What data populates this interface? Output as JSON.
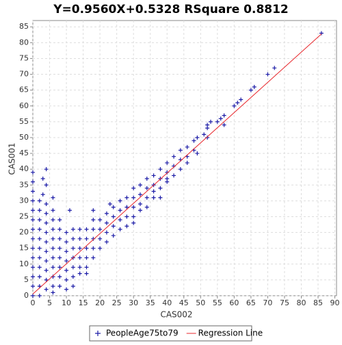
{
  "chart_data": {
    "type": "scatter",
    "title": "Y=0.9560X+0.5328    RSquare 0.8812",
    "x_label": "CAS002",
    "y_label": "CAS001",
    "xlim": [
      0,
      90.5
    ],
    "ylim": [
      0,
      87
    ],
    "xticks": [
      0,
      5,
      10,
      15,
      20,
      25,
      30,
      35,
      40,
      45,
      50,
      55,
      60,
      65,
      70,
      75,
      80,
      85,
      90
    ],
    "yticks": [
      0,
      5,
      10,
      15,
      20,
      25,
      30,
      35,
      40,
      45,
      50,
      55,
      60,
      65,
      70,
      75,
      80,
      85
    ],
    "grid": true,
    "legend": "bottom",
    "series": [
      {
        "name": "PeopleAge75to79",
        "color": "#1a1aa6",
        "marker": "plus",
        "x": [
          0,
          0,
          0,
          0,
          0,
          0,
          0,
          0,
          0,
          0,
          0,
          0,
          0,
          0,
          2,
          2,
          2,
          2,
          2,
          2,
          2,
          2,
          2,
          2,
          2,
          3,
          3,
          4,
          4,
          4,
          4,
          4,
          4,
          4,
          4,
          4,
          4,
          4,
          4,
          6,
          6,
          6,
          6,
          6,
          6,
          6,
          6,
          6,
          6,
          6,
          8,
          8,
          8,
          8,
          8,
          8,
          8,
          8,
          10,
          10,
          10,
          10,
          10,
          10,
          10,
          11,
          12,
          12,
          12,
          12,
          12,
          12,
          12,
          14,
          14,
          14,
          14,
          14,
          14,
          16,
          16,
          16,
          16,
          16,
          16,
          18,
          18,
          18,
          18,
          18,
          18,
          20,
          20,
          20,
          20,
          22,
          22,
          22,
          22,
          23,
          24,
          24,
          24,
          24,
          26,
          26,
          26,
          26,
          28,
          28,
          28,
          28,
          30,
          30,
          30,
          30,
          30,
          32,
          32,
          32,
          32,
          34,
          34,
          34,
          34,
          36,
          36,
          36,
          36,
          38,
          38,
          38,
          38,
          40,
          40,
          40,
          40,
          42,
          42,
          42,
          44,
          44,
          44,
          46,
          46,
          46,
          48,
          48,
          49,
          49,
          51,
          52,
          52,
          52,
          53,
          55,
          56,
          57,
          57,
          60,
          61,
          62,
          65,
          66,
          70,
          72,
          86
        ],
        "values": [
          0,
          3,
          6,
          9,
          12,
          15,
          18,
          21,
          24,
          27,
          30,
          33,
          36,
          39,
          0,
          3,
          6,
          9,
          12,
          15,
          18,
          21,
          24,
          27,
          30,
          37,
          32,
          40,
          35,
          2,
          5,
          8,
          11,
          14,
          17,
          20,
          23,
          26,
          29,
          31,
          27,
          24,
          21,
          18,
          15,
          12,
          9,
          6,
          3,
          1,
          24,
          21,
          18,
          15,
          12,
          9,
          6,
          3,
          20,
          17,
          14,
          11,
          8,
          5,
          2,
          27,
          21,
          18,
          15,
          12,
          9,
          6,
          3,
          21,
          18,
          15,
          12,
          9,
          7,
          21,
          18,
          15,
          12,
          9,
          7,
          27,
          24,
          21,
          18,
          15,
          12,
          24,
          21,
          18,
          15,
          26,
          23,
          20,
          17,
          29,
          28,
          25,
          22,
          19,
          30,
          27,
          24,
          21,
          31,
          28,
          25,
          22,
          34,
          31,
          28,
          25,
          23,
          35,
          32,
          29,
          27,
          37,
          34,
          31,
          28,
          38,
          35,
          33,
          31,
          40,
          37,
          34,
          31,
          42,
          39,
          36,
          37,
          44,
          41,
          38,
          46,
          43,
          40,
          47,
          44,
          42,
          49,
          46,
          50,
          45,
          51,
          54,
          53,
          50,
          55,
          55,
          56,
          57,
          54,
          60,
          61,
          62,
          65,
          66,
          70,
          72,
          83
        ]
      },
      {
        "name": "Regression Line",
        "color": "#e8262b",
        "marker": "line",
        "x": [
          0,
          86
        ],
        "values": [
          0.5328,
          82.75
        ]
      }
    ]
  }
}
